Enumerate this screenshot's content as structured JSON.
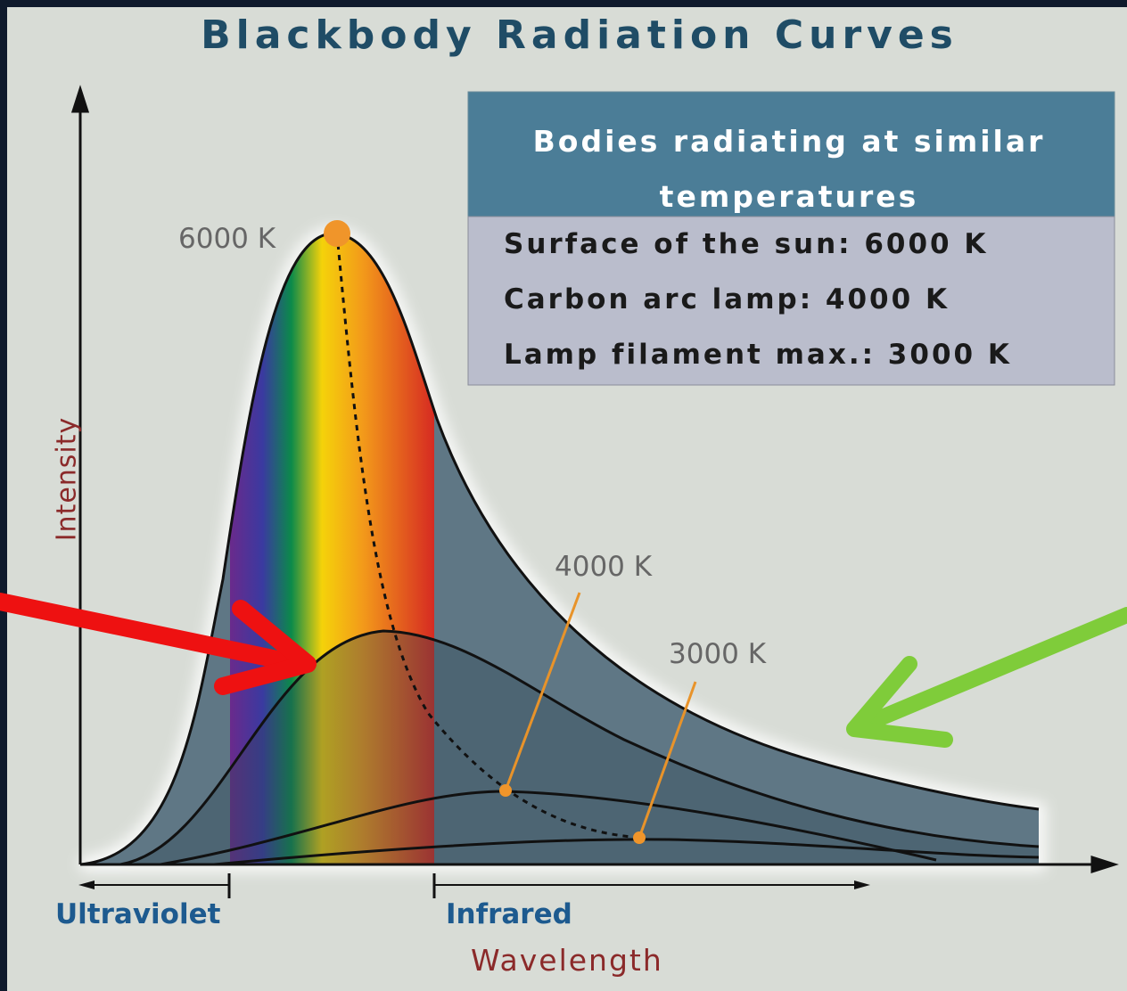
{
  "header": {
    "title": "Blackbody Radiation Curves"
  },
  "legend_box": {
    "heading": "Bodies radiating at similar temperatures",
    "rows": [
      "Surface of the sun: 6000 K",
      "Carbon arc lamp: 4000 K",
      "Lamp filament max.: 3000 K"
    ]
  },
  "curve_labels": [
    "6000 K",
    "4000 K",
    "3000 K"
  ],
  "axes": {
    "y_label": "Intensity",
    "x_label": "Wavelength"
  },
  "regions": [
    "Ultraviolet",
    "Infrared"
  ]
}
